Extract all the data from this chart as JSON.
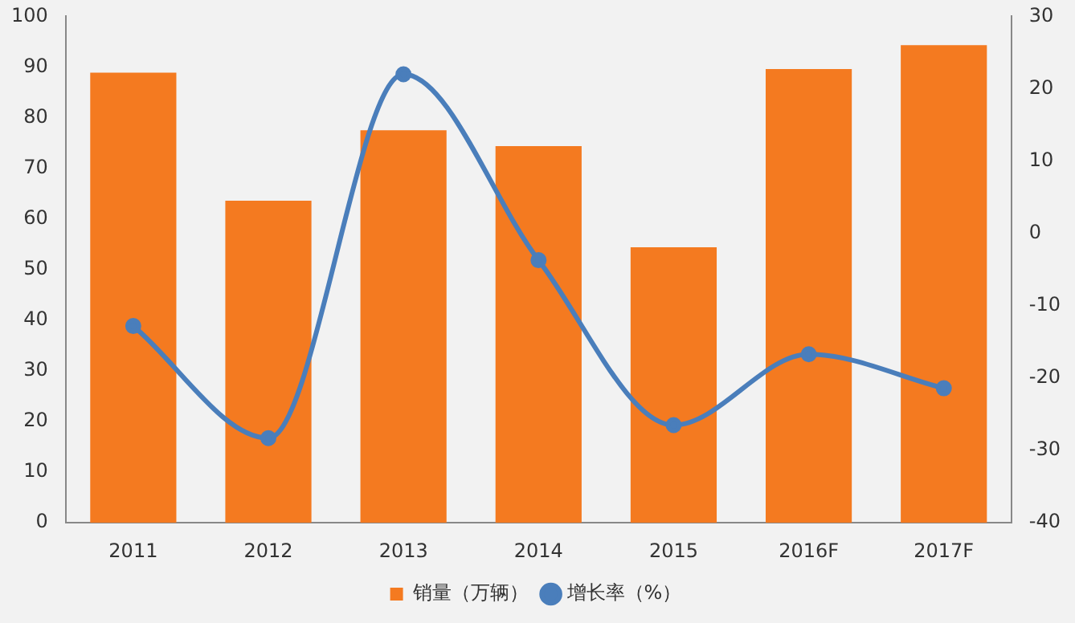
{
  "chart_data": {
    "type": "bar",
    "categories": [
      "2011",
      "2012",
      "2013",
      "2014",
      "2015",
      "2016F",
      "2017F"
    ],
    "series": [
      {
        "name": "销量（万辆）",
        "color": "#f47a20",
        "values": [
          88.9,
          63.6,
          77.5,
          74.4,
          54.4,
          89.6,
          94.3
        ]
      },
      {
        "name": "增长率（%）",
        "type": "line",
        "axis": "y2",
        "color": "#4a7ebb",
        "values": [
          -12.8,
          -28.3,
          22,
          -3.7,
          -26.5,
          -16.7,
          -21.4
        ]
      }
    ],
    "ylim": [
      0,
      100
    ],
    "yticks": [
      0,
      10,
      20,
      30,
      40,
      50,
      60,
      70,
      80,
      90,
      100
    ],
    "y2lim": [
      -40,
      30
    ],
    "y2ticks": [
      -40,
      -30,
      -20,
      -10,
      0,
      10,
      20,
      30
    ],
    "grid": false,
    "legend": "bottom",
    "marker": "circle",
    "line_style": "solid"
  }
}
